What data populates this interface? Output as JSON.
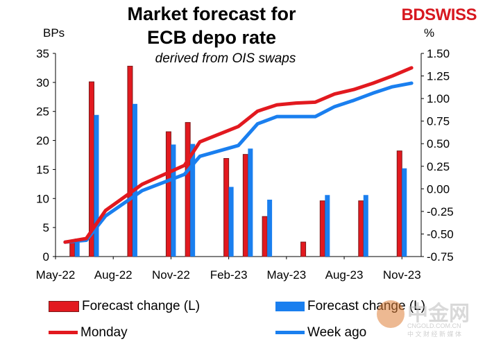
{
  "brand": {
    "logo_text": "BDSWISS"
  },
  "watermark": {
    "main": "中金网",
    "domain": "CNGOLD.COM.CN",
    "tagline": "中 文 财 经 新 媒 体"
  },
  "colors": {
    "red": "#e2191f",
    "blue": "#1a7fef",
    "red_dark_edge": "#7a1a1a"
  },
  "chart_data": {
    "type": "bar",
    "title": "Market forecast for ECB depo rate",
    "title_lines": [
      "Market forecast for",
      "ECB depo rate"
    ],
    "subtitle": "derived from OIS swaps",
    "y_left_label": "BPs",
    "y_right_label": "%",
    "ylim_left": [
      0,
      35
    ],
    "yticks_left": [
      "0",
      "5",
      "10",
      "15",
      "20",
      "25",
      "30",
      "35"
    ],
    "ylim_right": [
      -0.75,
      1.5
    ],
    "yticks_right": [
      "-0.75",
      "-0.50",
      "-0.25",
      "0.00",
      "0.25",
      "0.50",
      "0.75",
      "1.00",
      "1.25",
      "1.50"
    ],
    "xlim": [
      0,
      19
    ],
    "xticks": [
      {
        "x": 0,
        "label": "May-22"
      },
      {
        "x": 3,
        "label": "Aug-22"
      },
      {
        "x": 6,
        "label": "Nov-22"
      },
      {
        "x": 9,
        "label": "Feb-23"
      },
      {
        "x": 12,
        "label": "May-23"
      },
      {
        "x": 15,
        "label": "Aug-23"
      },
      {
        "x": 18,
        "label": "Nov-23"
      }
    ],
    "bar_series": [
      {
        "name": "Forecast change (L)",
        "x": [
          1,
          2,
          4,
          6,
          7,
          9,
          10,
          11,
          12,
          13,
          14,
          15,
          16,
          18
        ],
        "values": [
          2.5,
          30.1,
          32.8,
          21.5,
          23.1,
          16.9,
          17.6,
          6.9,
          0,
          2.5,
          9.6,
          0,
          9.6,
          18.2
        ]
      },
      {
        "name": "Forecast change (L)",
        "x": [
          1,
          2,
          4,
          6,
          7,
          9,
          10,
          11,
          12,
          13,
          14,
          15,
          16,
          18
        ],
        "values": [
          3.1,
          24.4,
          26.3,
          19.3,
          19.4,
          12.0,
          18.6,
          9.8,
          0,
          0,
          10.6,
          0,
          10.6,
          15.2
        ]
      }
    ],
    "line_series": [
      {
        "name": "Monday",
        "x": [
          0.5,
          1.6,
          2.6,
          4.5,
          6.7,
          7.5,
          9.5,
          10.5,
          11.5,
          12.5,
          13.5,
          14.5,
          15.5,
          16.5,
          17.5,
          18.5
        ],
        "values": [
          -0.59,
          -0.55,
          -0.24,
          0.05,
          0.26,
          0.52,
          0.69,
          0.86,
          0.93,
          0.95,
          0.96,
          1.05,
          1.1,
          1.17,
          1.25,
          1.34
        ]
      },
      {
        "name": "Week ago",
        "x": [
          0.5,
          1.6,
          2.6,
          4.5,
          6.7,
          7.5,
          9.5,
          10.5,
          11.5,
          12.5,
          13.5,
          14.5,
          15.5,
          16.5,
          17.5,
          18.5
        ],
        "values": [
          -0.59,
          -0.57,
          -0.3,
          -0.02,
          0.16,
          0.36,
          0.48,
          0.72,
          0.8,
          0.8,
          0.8,
          0.91,
          0.98,
          1.06,
          1.13,
          1.17
        ]
      }
    ],
    "legend": [
      {
        "label": "Forecast change (L)",
        "kind": "bar",
        "color": "red"
      },
      {
        "label": "Forecast change (L)",
        "kind": "bar",
        "color": "blue"
      },
      {
        "label": "Monday",
        "kind": "line",
        "color": "red"
      },
      {
        "label": "Week ago",
        "kind": "line",
        "color": "blue"
      }
    ],
    "grid": false,
    "legend_placement": "bottom"
  }
}
